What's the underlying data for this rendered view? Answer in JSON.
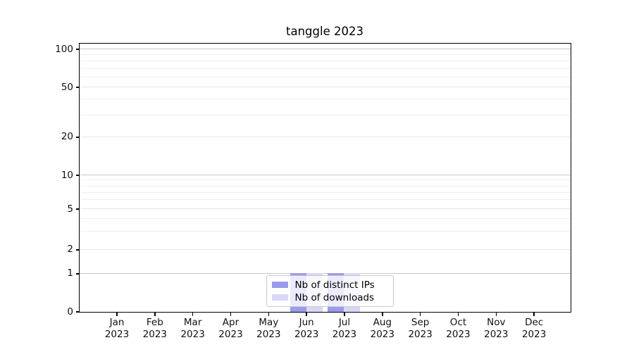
{
  "chart_data": {
    "type": "bar",
    "title": "tanggle 2023",
    "categories": [
      {
        "month": "Jan",
        "year": "2023"
      },
      {
        "month": "Feb",
        "year": "2023"
      },
      {
        "month": "Mar",
        "year": "2023"
      },
      {
        "month": "Apr",
        "year": "2023"
      },
      {
        "month": "May",
        "year": "2023"
      },
      {
        "month": "Jun",
        "year": "2023"
      },
      {
        "month": "Jul",
        "year": "2023"
      },
      {
        "month": "Aug",
        "year": "2023"
      },
      {
        "month": "Sep",
        "year": "2023"
      },
      {
        "month": "Oct",
        "year": "2023"
      },
      {
        "month": "Nov",
        "year": "2023"
      },
      {
        "month": "Dec",
        "year": "2023"
      }
    ],
    "series": [
      {
        "name": "Nb of distinct IPs",
        "color": "#9b9beb",
        "values": [
          0,
          0,
          0,
          0,
          0,
          1,
          1,
          0,
          0,
          0,
          0,
          0
        ]
      },
      {
        "name": "Nb of downloads",
        "color": "#d8d8f6",
        "values": [
          0,
          0,
          0,
          0,
          0,
          1,
          1,
          0,
          0,
          0,
          0,
          0
        ]
      }
    ],
    "y_axis": {
      "scale": "symlog",
      "ticks": [
        0,
        1,
        2,
        5,
        10,
        20,
        50,
        100
      ]
    },
    "x_axis": {
      "tick_label_lines": 2
    },
    "legend": {
      "position": "lower center"
    },
    "grid": {
      "horizontal": true,
      "vertical": false
    }
  }
}
